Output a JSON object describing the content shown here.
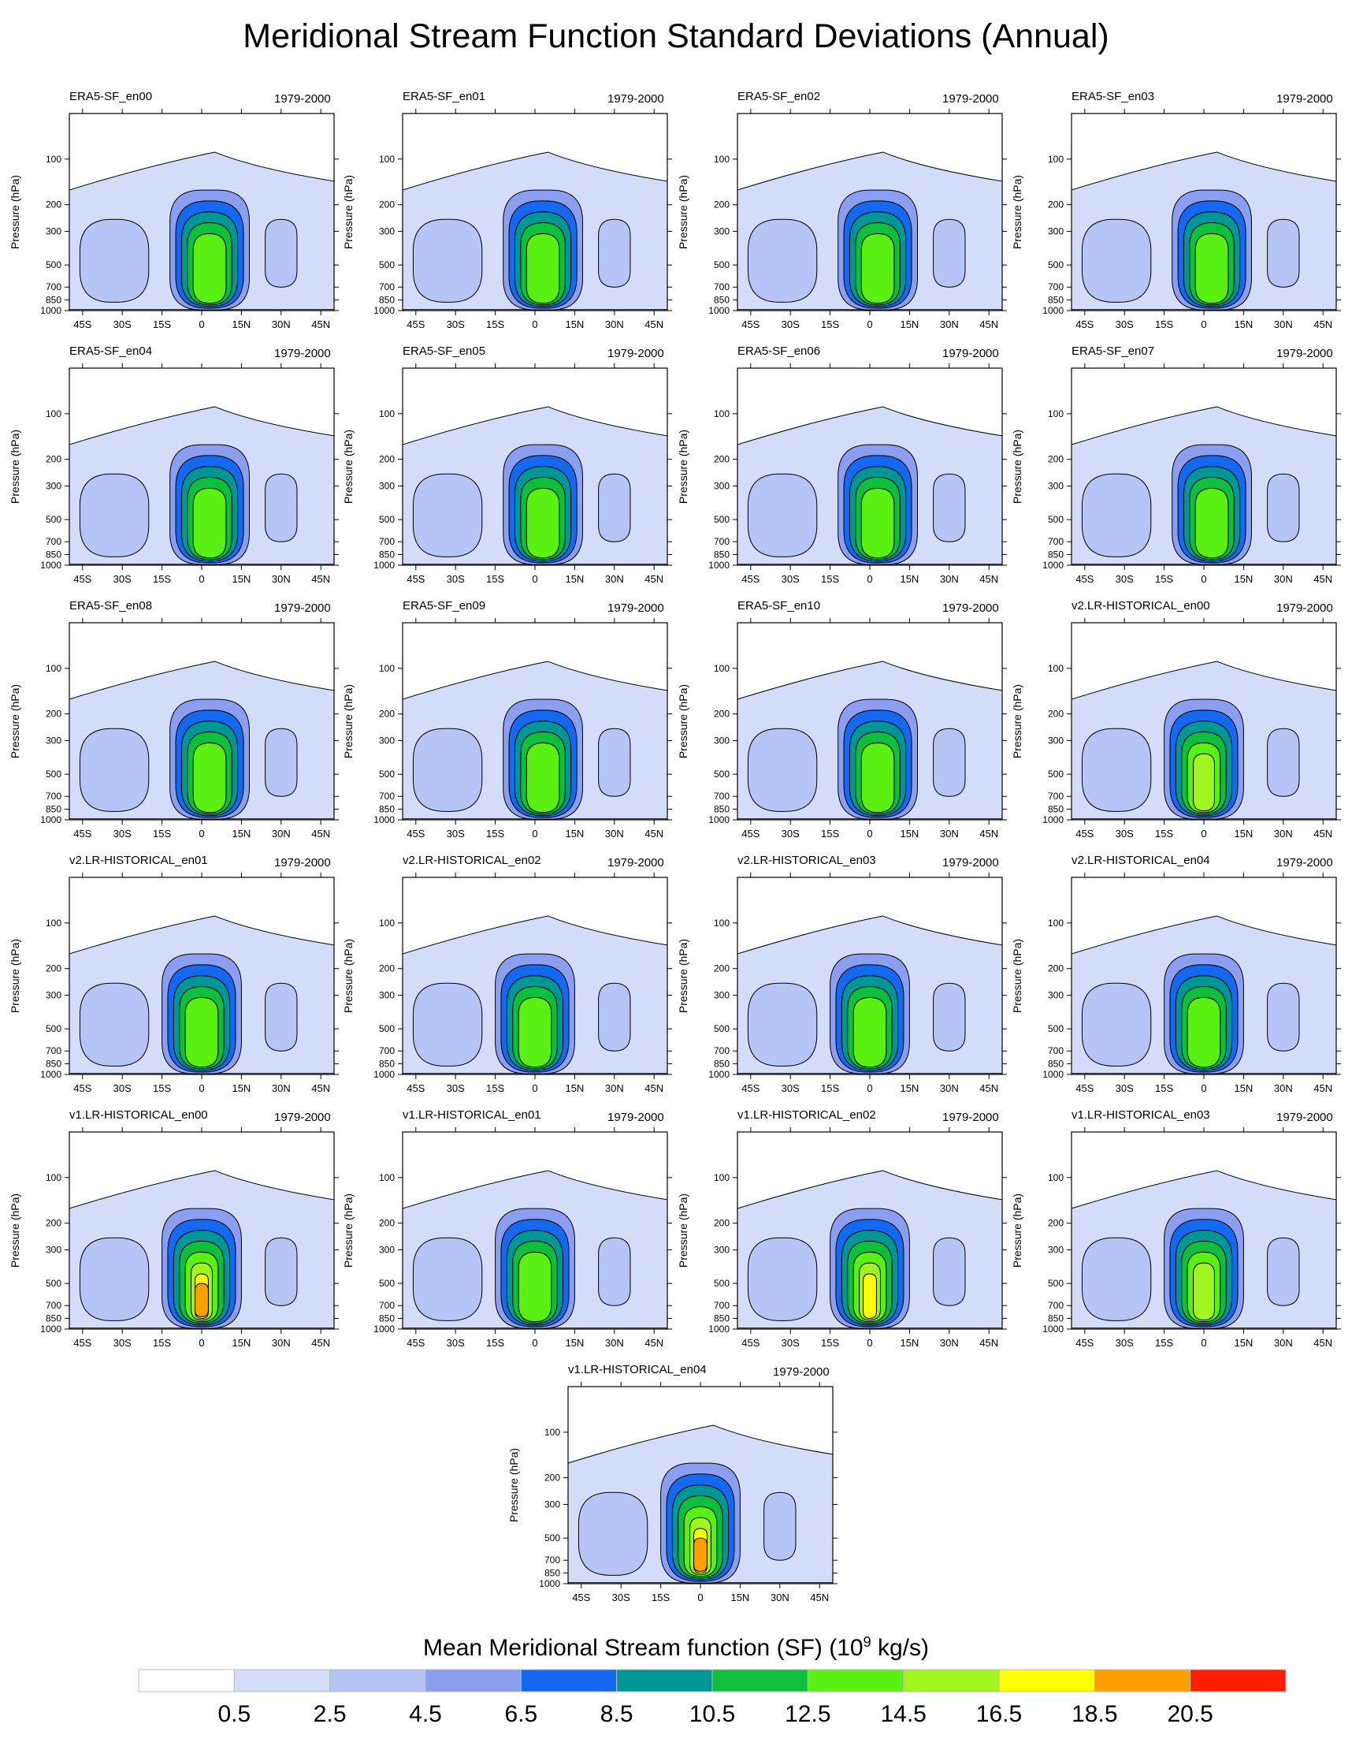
{
  "title": "Meridional Stream Function Standard Deviations (Annual)",
  "colorbar": {
    "title": "Mean Meridional Stream function (SF) (10",
    "title_exp": "9",
    "title_tail": " kg/s)",
    "levels": [
      "0.5",
      "2.5",
      "4.5",
      "6.5",
      "8.5",
      "10.5",
      "12.5",
      "14.5",
      "16.5",
      "18.5",
      "20.5"
    ],
    "colors": [
      "#ffffff",
      "#d3dcf9",
      "#b7c4f6",
      "#8c9ef0",
      "#1469f0",
      "#009696",
      "#0fbe3c",
      "#5af014",
      "#a0f51e",
      "#ffff00",
      "#ffa000",
      "#ff1e00"
    ]
  },
  "axes": {
    "ylabel": "Pressure (hPa)",
    "xticks": [
      "45S",
      "30S",
      "15S",
      "0",
      "15N",
      "30N",
      "45N"
    ],
    "yticks": [
      "100",
      "200",
      "300",
      "500",
      "700",
      "850",
      "1000"
    ]
  },
  "chart_data": {
    "type": "heatmap",
    "x_range": [
      "50S",
      "50N"
    ],
    "y_range_hPa": [
      1000,
      50
    ],
    "y_scale": "log",
    "panels": [
      {
        "name": "ERA5-SF_en00",
        "period": "1979-2000",
        "peak_lat": 3,
        "peak_level": 13.5
      },
      {
        "name": "ERA5-SF_en01",
        "period": "1979-2000",
        "peak_lat": 3,
        "peak_level": 13.5
      },
      {
        "name": "ERA5-SF_en02",
        "period": "1979-2000",
        "peak_lat": 3,
        "peak_level": 13.5
      },
      {
        "name": "ERA5-SF_en03",
        "period": "1979-2000",
        "peak_lat": 3,
        "peak_level": 13.5
      },
      {
        "name": "ERA5-SF_en04",
        "period": "1979-2000",
        "peak_lat": 3,
        "peak_level": 13.5
      },
      {
        "name": "ERA5-SF_en05",
        "period": "1979-2000",
        "peak_lat": 3,
        "peak_level": 13.5
      },
      {
        "name": "ERA5-SF_en06",
        "period": "1979-2000",
        "peak_lat": 3,
        "peak_level": 13.5
      },
      {
        "name": "ERA5-SF_en07",
        "period": "1979-2000",
        "peak_lat": 3,
        "peak_level": 13.5
      },
      {
        "name": "ERA5-SF_en08",
        "period": "1979-2000",
        "peak_lat": 3,
        "peak_level": 13.5
      },
      {
        "name": "ERA5-SF_en09",
        "period": "1979-2000",
        "peak_lat": 3,
        "peak_level": 13.5
      },
      {
        "name": "ERA5-SF_en10",
        "period": "1979-2000",
        "peak_lat": 3,
        "peak_level": 13.5
      },
      {
        "name": "v2.LR-HISTORICAL_en00",
        "period": "1979-2000",
        "peak_lat": 0,
        "peak_level": 15.5
      },
      {
        "name": "v2.LR-HISTORICAL_en01",
        "period": "1979-2000",
        "peak_lat": 0,
        "peak_level": 13.5
      },
      {
        "name": "v2.LR-HISTORICAL_en02",
        "period": "1979-2000",
        "peak_lat": 0,
        "peak_level": 13.5
      },
      {
        "name": "v2.LR-HISTORICAL_en03",
        "period": "1979-2000",
        "peak_lat": 0,
        "peak_level": 13.5
      },
      {
        "name": "v2.LR-HISTORICAL_en04",
        "period": "1979-2000",
        "peak_lat": 0,
        "peak_level": 13.5
      },
      {
        "name": "v1.LR-HISTORICAL_en00",
        "period": "1979-2000",
        "peak_lat": 0,
        "peak_level": 19.5
      },
      {
        "name": "v1.LR-HISTORICAL_en01",
        "period": "1979-2000",
        "peak_lat": 0,
        "peak_level": 13.5
      },
      {
        "name": "v1.LR-HISTORICAL_en02",
        "period": "1979-2000",
        "peak_lat": 0,
        "peak_level": 17.5
      },
      {
        "name": "v1.LR-HISTORICAL_en03",
        "period": "1979-2000",
        "peak_lat": 0,
        "peak_level": 15.5
      },
      {
        "name": "v1.LR-HISTORICAL_en04",
        "period": "1979-2000",
        "peak_lat": 0,
        "peak_level": 19.5
      }
    ]
  }
}
